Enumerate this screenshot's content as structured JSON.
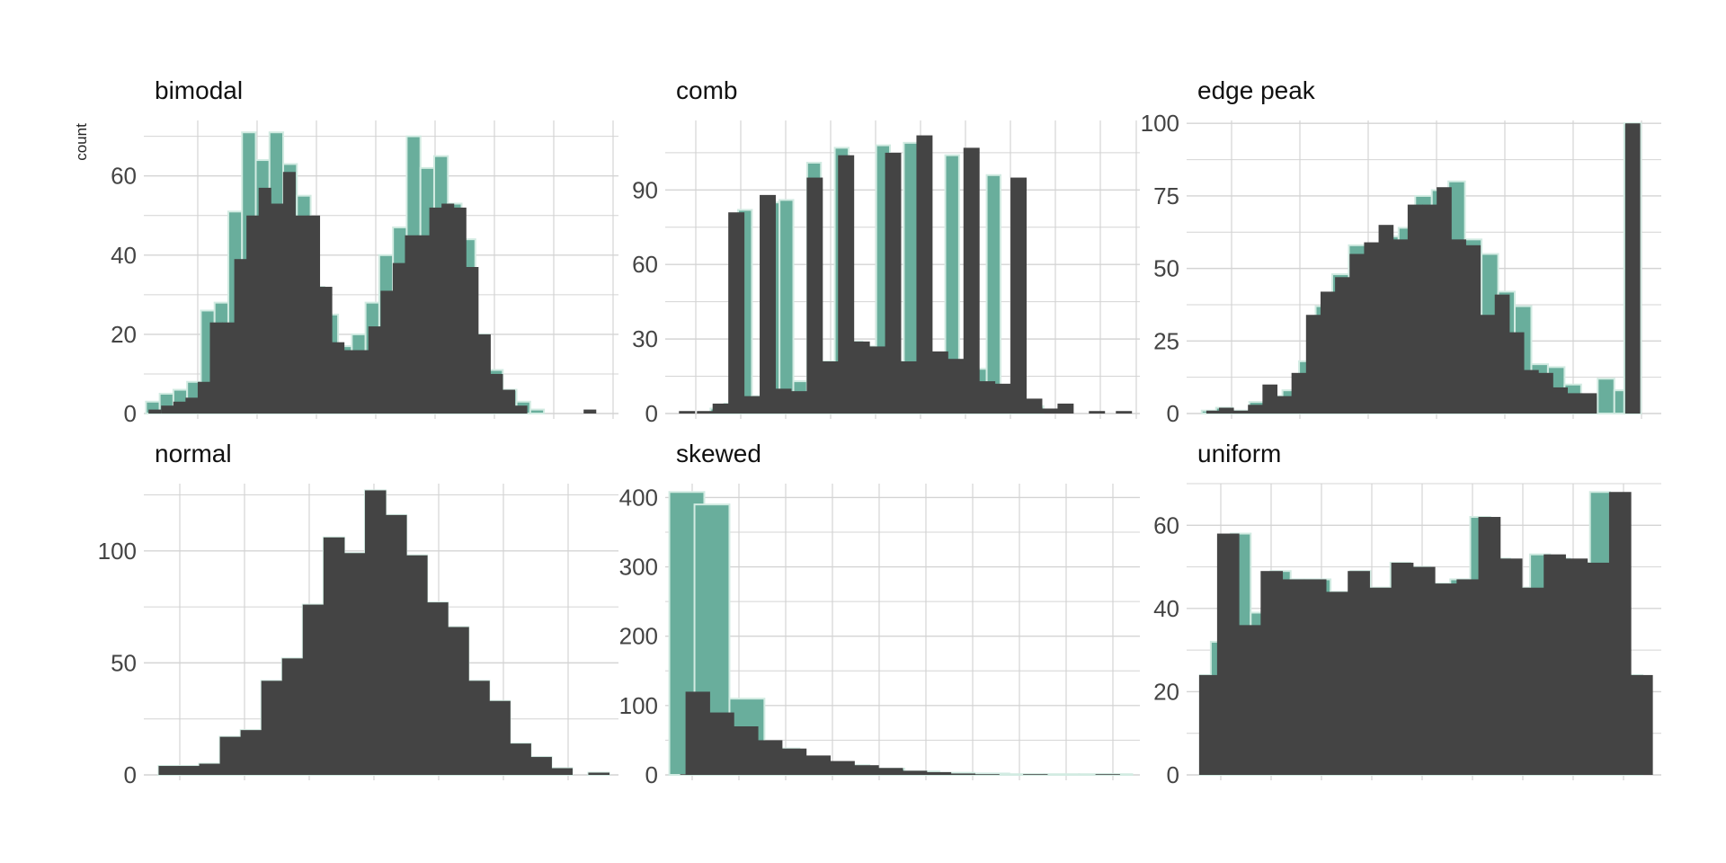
{
  "chart_data": {
    "type": "bar",
    "ylabel": "count",
    "colors": {
      "fill": "#444444",
      "overlay": "#69ae9c",
      "overlay_edge": "#d2ebe2",
      "grid": "#d4d4d4"
    },
    "panels": [
      {
        "title": "bimodal",
        "ylim": [
          0,
          74
        ],
        "yticks": [
          0,
          20,
          40,
          60
        ],
        "dark": [
          1,
          2,
          3,
          4,
          8,
          23,
          23,
          39,
          50,
          57,
          53,
          61,
          50,
          50,
          32,
          18,
          16,
          16,
          22,
          31,
          38,
          45,
          45,
          52,
          53,
          52,
          37,
          20,
          10,
          6,
          2,
          0,
          0,
          0,
          1
        ],
        "teal": [
          2,
          3,
          5,
          6,
          8,
          26,
          28,
          51,
          71,
          64,
          71,
          63,
          55,
          32,
          25,
          17,
          20,
          28,
          40,
          47,
          70,
          62,
          65,
          53,
          44,
          20,
          11,
          6,
          3,
          1,
          0,
          0,
          0
        ]
      },
      {
        "title": "comb",
        "ylim": [
          0,
          118
        ],
        "yticks": [
          0,
          30,
          60,
          90
        ],
        "dark": [
          1,
          1,
          4,
          81,
          7,
          88,
          10,
          9,
          95,
          21,
          104,
          29,
          27,
          105,
          21,
          112,
          25,
          22,
          107,
          13,
          12,
          95,
          6,
          2,
          4,
          0,
          1,
          1
        ],
        "teal": [
          0,
          2,
          4,
          82,
          7,
          85,
          86,
          13,
          101,
          21,
          107,
          29,
          27,
          108,
          21,
          109,
          102,
          22,
          104,
          13,
          18,
          96,
          6,
          2,
          3
        ]
      },
      {
        "title": "edge peak",
        "ylim": [
          0,
          101
        ],
        "yticks": [
          0,
          25,
          50,
          75,
          100
        ],
        "dark": [
          1,
          2,
          1,
          3,
          10,
          6,
          14,
          34,
          42,
          47,
          55,
          59,
          65,
          60,
          72,
          72,
          78,
          60,
          58,
          34,
          41,
          28,
          15,
          14,
          9,
          7,
          7,
          0,
          0,
          100
        ],
        "teal": [
          1,
          2,
          1,
          4,
          6,
          8,
          18,
          37,
          48,
          58,
          52,
          61,
          64,
          75,
          77,
          80,
          60,
          55,
          42,
          37,
          17,
          16,
          10,
          6,
          12,
          8,
          100
        ]
      },
      {
        "title": "normal",
        "ylim": [
          0,
          130
        ],
        "yticks": [
          0,
          50,
          100
        ],
        "dark": [
          4,
          4,
          5,
          17,
          20,
          42,
          52,
          76,
          106,
          99,
          127,
          116,
          98,
          77,
          66,
          42,
          33,
          14,
          8,
          3,
          0,
          1
        ],
        "teal": [
          4,
          4,
          5,
          17,
          20,
          42,
          52,
          76,
          106,
          99,
          127,
          116,
          98,
          77,
          66,
          42,
          33,
          14,
          8,
          3,
          0,
          1
        ]
      },
      {
        "title": "skewed",
        "ylim": [
          0,
          420
        ],
        "yticks": [
          0,
          100,
          200,
          300,
          400
        ],
        "dark": [
          1,
          120,
          90,
          70,
          50,
          38,
          28,
          20,
          14,
          10,
          6,
          4,
          2,
          1,
          0,
          1,
          0,
          0,
          1,
          0
        ],
        "teal": [
          408,
          390,
          110,
          38,
          17,
          14,
          9,
          5,
          3,
          2,
          1,
          1,
          1,
          1
        ]
      },
      {
        "title": "uniform",
        "ylim": [
          0,
          70
        ],
        "yticks": [
          0,
          20,
          40,
          60
        ],
        "dark": [
          24,
          58,
          36,
          49,
          47,
          47,
          44,
          49,
          45,
          51,
          50,
          46,
          47,
          62,
          52,
          45,
          53,
          52,
          51,
          68,
          24
        ],
        "teal": [
          24,
          32,
          58,
          39,
          49,
          47,
          47,
          44,
          49,
          45,
          51,
          50,
          46,
          47,
          62,
          52,
          45,
          53,
          52,
          51,
          68,
          39,
          24
        ]
      }
    ]
  }
}
